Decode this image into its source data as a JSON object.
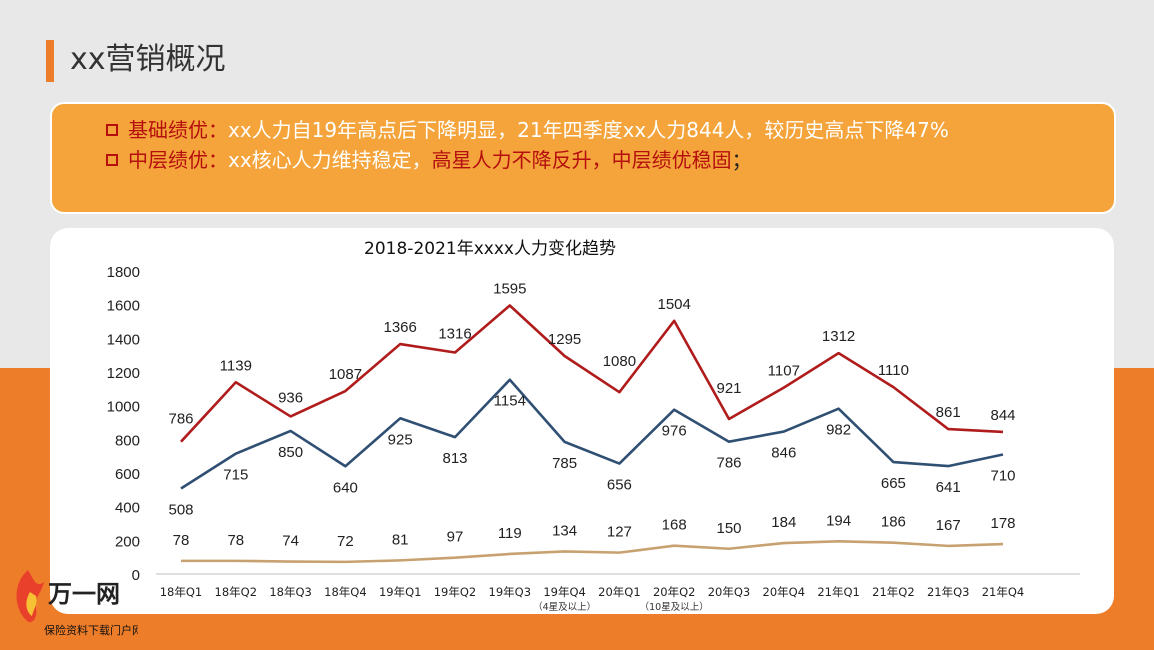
{
  "header": {
    "title": "xx营销概况"
  },
  "summary": [
    {
      "label": "基础绩优：",
      "text": "xx人力自19年高点后下降明显，21年四季度xx人力844人，较历史高点下降47%",
      "highlight": "",
      "tail": ""
    },
    {
      "label": "中层绩优：",
      "text": "xx核心人力维持稳定，",
      "highlight": "高星人力不降反升，中层绩优稳固",
      "tail": "；"
    }
  ],
  "logo": {
    "brand": "万一网",
    "tagline": "保险资料下载门户网站"
  },
  "colors": {
    "red": "#b01c1c",
    "blue": "#2f4f73",
    "tan": "#c8a170",
    "accent": "#ee7d29"
  },
  "chart_data": {
    "type": "line",
    "title": "2018-2021年xxxx人力变化趋势",
    "categories": [
      "18年Q1",
      "18年Q2",
      "18年Q3",
      "18年Q4",
      "19年Q1",
      "19年Q2",
      "19年Q3",
      "19年Q4",
      "20年Q1",
      "20年Q2",
      "20年Q3",
      "20年Q4",
      "21年Q1",
      "21年Q2",
      "21年Q3",
      "21年Q4"
    ],
    "category_notes": {
      "7": "（4星及以上）",
      "9": "（10星及以上）"
    },
    "ylim": [
      0,
      1800
    ],
    "yticks": [
      0,
      200,
      400,
      600,
      800,
      1000,
      1200,
      1400,
      1600,
      1800
    ],
    "grid": false,
    "legend": "none",
    "series": [
      {
        "color": "#b01c1c",
        "values": [
          786,
          1139,
          936,
          1087,
          1366,
          1316,
          1595,
          1295,
          1080,
          1504,
          921,
          1107,
          1312,
          1110,
          861,
          844
        ]
      },
      {
        "color": "#2f4f73",
        "values": [
          508,
          715,
          850,
          640,
          925,
          813,
          1154,
          785,
          656,
          976,
          786,
          846,
          982,
          665,
          641,
          710
        ]
      },
      {
        "color": "#c8a170",
        "values": [
          78,
          78,
          74,
          72,
          81,
          97,
          119,
          134,
          127,
          168,
          150,
          184,
          194,
          186,
          167,
          178
        ]
      }
    ]
  }
}
